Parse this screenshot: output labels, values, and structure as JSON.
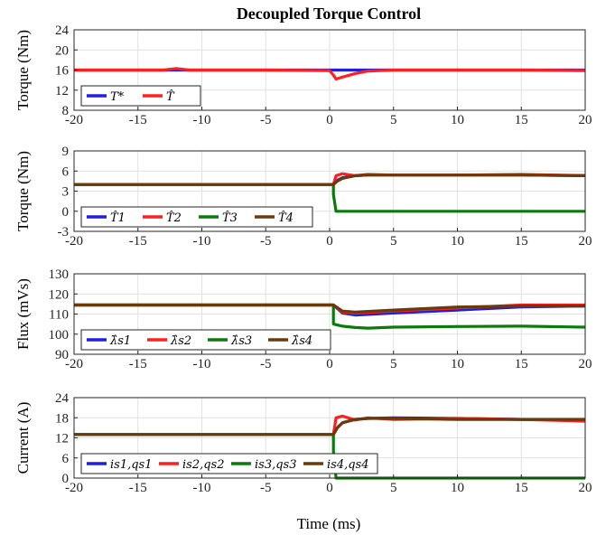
{
  "figure": {
    "title": "Decoupled Torque Control",
    "xlabel": "Time (ms)"
  },
  "chart_data": [
    {
      "type": "line",
      "ylabel": "Torque (Nm)",
      "xlim": [
        -20,
        20
      ],
      "ylim": [
        8,
        24
      ],
      "xticks": [
        -20,
        -15,
        -10,
        -5,
        0,
        5,
        10,
        15,
        20
      ],
      "yticks": [
        8,
        12,
        16,
        20,
        24
      ],
      "grid": true,
      "legend_position": "bottom-left",
      "series": [
        {
          "name": "T*",
          "color": "#1f1fe0",
          "x": [
            -20,
            0.3,
            0.3,
            20
          ],
          "y": [
            16,
            16,
            16,
            16
          ]
        },
        {
          "name": "T̂",
          "color": "#ff1f1f",
          "x": [
            -20,
            -13,
            -12,
            -11,
            -5,
            0,
            0.3,
            0.5,
            1,
            2,
            3,
            5,
            10,
            15,
            20
          ],
          "y": [
            16,
            16,
            16.3,
            16,
            16,
            15.9,
            15,
            14.2,
            14.6,
            15.3,
            15.8,
            16,
            16,
            16,
            15.9
          ]
        }
      ]
    },
    {
      "type": "line",
      "ylabel": "Torque (Nm)",
      "xlim": [
        -20,
        20
      ],
      "ylim": [
        -3,
        9
      ],
      "xticks": [
        -20,
        -15,
        -10,
        -5,
        0,
        5,
        10,
        15,
        20
      ],
      "yticks": [
        -3,
        0,
        3,
        6,
        9
      ],
      "grid": true,
      "legend_position": "bottom-left",
      "series": [
        {
          "name": "T̂1",
          "color": "#1f1fe0",
          "x": [
            -20,
            0.3,
            0.6,
            1,
            2,
            3,
            5,
            10,
            15,
            20
          ],
          "y": [
            4,
            4,
            4.6,
            5,
            5.3,
            5.4,
            5.4,
            5.4,
            5.4,
            5.3
          ]
        },
        {
          "name": "T̂2",
          "color": "#ff1f1f",
          "x": [
            -20,
            0.3,
            0.5,
            1,
            2,
            3,
            5,
            10,
            15,
            20
          ],
          "y": [
            4,
            4,
            5.3,
            5.6,
            5.3,
            5.5,
            5.4,
            5.4,
            5.5,
            5.3
          ]
        },
        {
          "name": "T̂3",
          "color": "#0b7a0b",
          "x": [
            -20,
            0.3,
            0.3,
            0.5,
            20
          ],
          "y": [
            4,
            4,
            2.5,
            0,
            0
          ]
        },
        {
          "name": "T̂4",
          "color": "#6b3a0b",
          "x": [
            -20,
            0.3,
            0.6,
            1,
            2,
            3,
            5,
            10,
            15,
            20
          ],
          "y": [
            4,
            4,
            4.5,
            4.9,
            5.3,
            5.4,
            5.4,
            5.4,
            5.4,
            5.3
          ]
        }
      ]
    },
    {
      "type": "line",
      "ylabel": "Flux (mVs)",
      "xlim": [
        -20,
        20
      ],
      "ylim": [
        90,
        130
      ],
      "xticks": [
        -20,
        -15,
        -10,
        -5,
        0,
        5,
        10,
        15,
        20
      ],
      "yticks": [
        90,
        100,
        110,
        120,
        130
      ],
      "grid": true,
      "legend_position": "bottom-left",
      "series": [
        {
          "name": "λ̂s1",
          "color": "#1f1fe0",
          "x": [
            -20,
            0.3,
            1,
            2,
            5,
            10,
            15,
            20
          ],
          "y": [
            114.5,
            114.5,
            110.5,
            109.5,
            110.5,
            112,
            113.5,
            114
          ]
        },
        {
          "name": "λ̂s2",
          "color": "#ff1f1f",
          "x": [
            -20,
            0.3,
            1,
            2,
            5,
            10,
            15,
            20
          ],
          "y": [
            114.5,
            114.5,
            111,
            110.5,
            111.5,
            113,
            114.5,
            114.5
          ]
        },
        {
          "name": "λ̂s3",
          "color": "#0b7a0b",
          "x": [
            -20,
            0.3,
            0.3,
            1,
            2,
            3,
            5,
            10,
            15,
            20
          ],
          "y": [
            114.5,
            114.5,
            105,
            104,
            103.3,
            103,
            103.5,
            103.8,
            104,
            103.5
          ]
        },
        {
          "name": "λ̂s4",
          "color": "#6b3a0b",
          "x": [
            -20,
            0.3,
            1,
            2,
            5,
            10,
            15,
            20
          ],
          "y": [
            114.5,
            114.5,
            111.5,
            111,
            112,
            113.5,
            114,
            114
          ]
        }
      ]
    },
    {
      "type": "line",
      "ylabel": "Current (A)",
      "xlim": [
        -20,
        20
      ],
      "ylim": [
        0,
        24
      ],
      "xticks": [
        -20,
        -15,
        -10,
        -5,
        0,
        5,
        10,
        15,
        20
      ],
      "yticks": [
        0,
        6,
        12,
        18,
        24
      ],
      "grid": true,
      "legend_position": "bottom-left",
      "series": [
        {
          "name": "is1,qs1",
          "color": "#1f1fe0",
          "x": [
            -20,
            0.3,
            0.6,
            1,
            2,
            3,
            5,
            10,
            15,
            20
          ],
          "y": [
            13,
            13,
            15,
            16.5,
            17.5,
            17.8,
            18,
            17.8,
            17.5,
            17.3
          ]
        },
        {
          "name": "is2,qs2",
          "color": "#ff1f1f",
          "x": [
            -20,
            0.3,
            0.5,
            1,
            2,
            3,
            5,
            10,
            15,
            20
          ],
          "y": [
            13,
            13,
            18,
            18.5,
            17.3,
            18,
            17.5,
            17.8,
            17.5,
            17
          ]
        },
        {
          "name": "is3,qs3",
          "color": "#0b7a0b",
          "x": [
            -20,
            0.3,
            0.3,
            0.5,
            20
          ],
          "y": [
            13,
            13,
            8,
            0,
            0
          ]
        },
        {
          "name": "is4,qs4",
          "color": "#6b3a0b",
          "x": [
            -20,
            0.3,
            0.6,
            1,
            2,
            3,
            5,
            10,
            15,
            20
          ],
          "y": [
            13,
            13,
            15,
            16.5,
            17.5,
            17.8,
            17.8,
            17.5,
            17.5,
            17.5
          ]
        }
      ]
    }
  ]
}
